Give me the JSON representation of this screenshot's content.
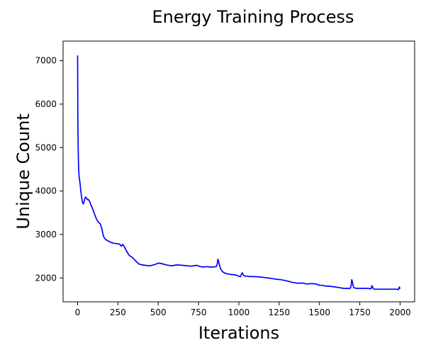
{
  "chart_data": {
    "type": "line",
    "title": "Energy Training Process",
    "xlabel": "Iterations",
    "ylabel": "Unique Count",
    "xlim": [
      -90,
      2090
    ],
    "ylim": [
      1450,
      7450
    ],
    "xticks": [
      0,
      250,
      500,
      750,
      1000,
      1250,
      1500,
      1750,
      2000
    ],
    "yticks": [
      2000,
      3000,
      4000,
      5000,
      6000,
      7000
    ],
    "grid": false,
    "series": [
      {
        "name": "Unique Count",
        "color": "#0000ff",
        "x": [
          0,
          2,
          4,
          6,
          8,
          10,
          13,
          16,
          20,
          25,
          30,
          35,
          40,
          45,
          50,
          55,
          60,
          65,
          70,
          75,
          80,
          90,
          100,
          110,
          120,
          130,
          140,
          150,
          160,
          170,
          180,
          200,
          220,
          240,
          260,
          270,
          280,
          290,
          300,
          320,
          340,
          360,
          380,
          400,
          420,
          450,
          480,
          500,
          520,
          550,
          580,
          600,
          620,
          650,
          680,
          700,
          720,
          740,
          760,
          780,
          800,
          820,
          840,
          860,
          865,
          870,
          875,
          880,
          885,
          890,
          900,
          920,
          950,
          980,
          1000,
          1010,
          1020,
          1025,
          1030,
          1035,
          1040,
          1050,
          1070,
          1100,
          1130,
          1160,
          1200,
          1230,
          1260,
          1300,
          1330,
          1360,
          1400,
          1420,
          1450,
          1480,
          1500,
          1520,
          1540,
          1560,
          1580,
          1600,
          1620,
          1650,
          1680,
          1690,
          1695,
          1700,
          1705,
          1710,
          1715,
          1720,
          1730,
          1750,
          1780,
          1800,
          1820,
          1825,
          1830,
          1835,
          1840,
          1850,
          1870,
          1900,
          1930,
          1960,
          1980,
          1990,
          1995,
          2000
        ],
        "y": [
          7120,
          5500,
          4900,
          4600,
          4400,
          4300,
          4250,
          4150,
          4000,
          3850,
          3750,
          3700,
          3750,
          3830,
          3860,
          3840,
          3800,
          3810,
          3790,
          3760,
          3700,
          3620,
          3520,
          3420,
          3330,
          3280,
          3250,
          3140,
          2960,
          2900,
          2870,
          2830,
          2800,
          2790,
          2780,
          2730,
          2770,
          2720,
          2640,
          2520,
          2470,
          2390,
          2320,
          2300,
          2290,
          2280,
          2310,
          2340,
          2330,
          2300,
          2280,
          2290,
          2300,
          2290,
          2280,
          2270,
          2280,
          2290,
          2260,
          2250,
          2260,
          2250,
          2250,
          2260,
          2300,
          2430,
          2370,
          2300,
          2230,
          2190,
          2140,
          2100,
          2080,
          2070,
          2040,
          2030,
          2120,
          2090,
          2060,
          2050,
          2040,
          2040,
          2030,
          2030,
          2020,
          2010,
          1990,
          1970,
          1960,
          1930,
          1900,
          1880,
          1880,
          1860,
          1870,
          1860,
          1830,
          1830,
          1810,
          1810,
          1800,
          1790,
          1780,
          1760,
          1760,
          1760,
          1790,
          1960,
          1900,
          1800,
          1770,
          1770,
          1760,
          1760,
          1760,
          1760,
          1750,
          1820,
          1790,
          1750,
          1740,
          1740,
          1740,
          1740,
          1740,
          1740,
          1740,
          1730,
          1790,
          1750
        ]
      }
    ]
  }
}
